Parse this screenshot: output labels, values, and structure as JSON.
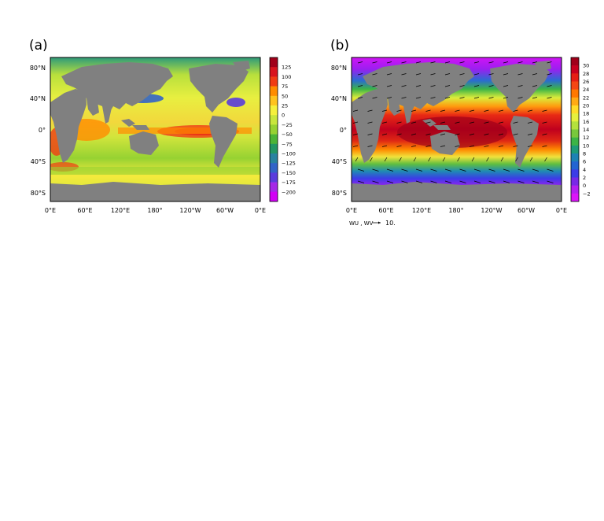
{
  "panel_a": {
    "label": "(a)",
    "lat_ticks": [
      "80°N",
      "40°N",
      "0°",
      "40°S",
      "80°S"
    ],
    "lon_ticks": [
      "0°E",
      "60°E",
      "120°E",
      "180°",
      "120°W",
      "60°W",
      "0°E"
    ],
    "colorbar": {
      "labels": [
        "125",
        "100",
        "75",
        "50",
        "25",
        "0",
        "−25",
        "−50",
        "−75",
        "−100",
        "−125",
        "−150",
        "−175",
        "−200"
      ],
      "colors": [
        "#a0001a",
        "#d8141e",
        "#f03c14",
        "#ff8c00",
        "#ffc31e",
        "#f5f03c",
        "#c8e63c",
        "#96d232",
        "#4bb437",
        "#229664",
        "#2882a0",
        "#3264c8",
        "#5a3cdc",
        "#a528e6",
        "#d200f5"
      ]
    }
  },
  "panel_b": {
    "label": "(b)",
    "lat_ticks": [
      "80°N",
      "40°N",
      "0°",
      "40°S",
      "80°S"
    ],
    "lon_ticks": [
      "0°E",
      "60°E",
      "120°E",
      "180°",
      "120°W",
      "60°W",
      "0°E"
    ],
    "vector_ref_label": "WU , WV",
    "vector_ref_value": "10.",
    "colorbar": {
      "labels": [
        "30",
        "28",
        "26",
        "24",
        "22",
        "20",
        "18",
        "16",
        "14",
        "12",
        "10",
        "8",
        "6",
        "4",
        "2",
        "0",
        "−2"
      ],
      "colors": [
        "#a0001a",
        "#c8001e",
        "#e61e14",
        "#f54614",
        "#ff7800",
        "#ffaa14",
        "#ffdc28",
        "#e6f03c",
        "#b4e13c",
        "#78c83c",
        "#3cb446",
        "#1e9b78",
        "#1e82b4",
        "#2364d2",
        "#3c3ce6",
        "#7828e6",
        "#b41ef0",
        "#dc14fa"
      ]
    }
  },
  "colors": {
    "land": "#808080",
    "background": "#ffffff"
  }
}
